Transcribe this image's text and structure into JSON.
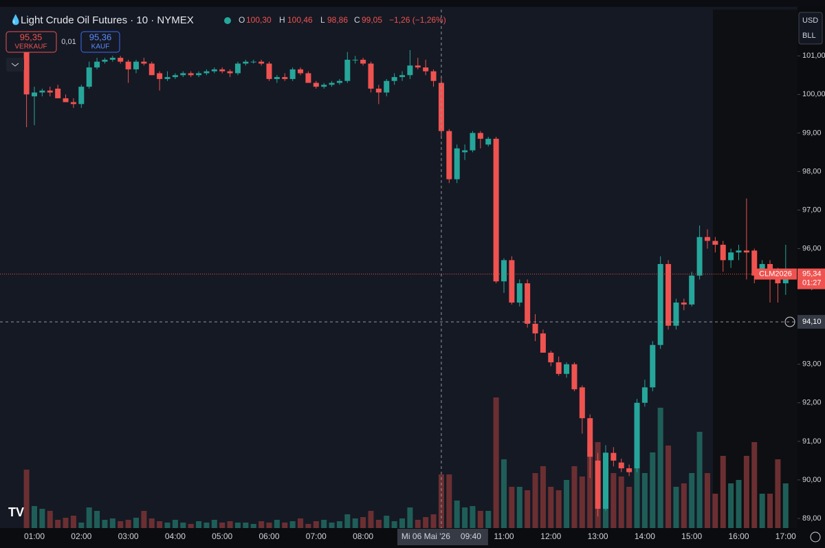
{
  "header": {
    "title": "Light Crude Oil Futures · 10 · NYMEX",
    "open_label": "O",
    "open": "100,30",
    "high_label": "H",
    "high": "100,46",
    "low_label": "L",
    "low": "98,86",
    "close_label": "C",
    "close": "99,05",
    "change": "−1,26 (−1,26%)"
  },
  "trade": {
    "sell_price": "95,35",
    "sell_label": "VERKAUF",
    "spread": "0,01",
    "buy_price": "95,36",
    "buy_label": "KAUF"
  },
  "price_scale": {
    "currency": "USD",
    "unit": "BLL"
  },
  "chart_data": {
    "type": "candlestick",
    "x": [
      "00:50",
      "01:00",
      "01:10",
      "01:20",
      "01:30",
      "01:40",
      "01:50",
      "02:00",
      "02:10",
      "02:20",
      "02:30",
      "02:40",
      "02:50",
      "03:00",
      "03:10",
      "03:20",
      "03:30",
      "03:40",
      "03:50",
      "04:00",
      "04:10",
      "04:20",
      "04:30",
      "04:40",
      "04:50",
      "05:00",
      "05:10",
      "05:20",
      "05:30",
      "05:40",
      "05:50",
      "06:00",
      "06:10",
      "06:20",
      "06:30",
      "06:40",
      "06:50",
      "07:00",
      "07:10",
      "07:20",
      "07:30",
      "07:40",
      "07:50",
      "08:00",
      "08:10",
      "08:20",
      "08:30",
      "08:40",
      "08:50",
      "09:00",
      "09:10",
      "09:20",
      "09:30",
      "09:40",
      "09:50",
      "10:00",
      "10:10",
      "10:20",
      "10:30",
      "10:40",
      "10:50",
      "11:00",
      "11:10",
      "11:20",
      "11:30",
      "11:40",
      "11:50",
      "12:00",
      "12:10",
      "12:20",
      "12:30",
      "12:40",
      "12:50",
      "13:00",
      "13:10",
      "13:20",
      "13:30",
      "13:40",
      "13:50",
      "14:00",
      "14:10",
      "14:20",
      "14:30",
      "14:40",
      "14:50",
      "15:00",
      "15:10",
      "15:20",
      "15:30",
      "15:40",
      "15:50",
      "16:00",
      "16:10",
      "16:20",
      "16:30",
      "16:40",
      "16:50",
      "17:00"
    ],
    "open": [
      101.15,
      99.95,
      100.05,
      100.1,
      100.15,
      99.9,
      99.8,
      99.75,
      100.2,
      100.7,
      100.85,
      100.9,
      100.95,
      100.85,
      100.65,
      100.85,
      100.8,
      100.55,
      100.4,
      100.45,
      100.5,
      100.55,
      100.5,
      100.55,
      100.6,
      100.65,
      100.6,
      100.55,
      100.8,
      100.85,
      100.85,
      100.8,
      100.4,
      100.45,
      100.4,
      100.65,
      100.55,
      100.3,
      100.2,
      100.25,
      100.3,
      100.35,
      100.9,
      100.9,
      100.8,
      100.15,
      100.05,
      100.35,
      100.45,
      100.5,
      100.75,
      100.7,
      100.6,
      100.3,
      99.05,
      97.8,
      98.5,
      98.55,
      99.0,
      98.7,
      98.85,
      95.15,
      95.7,
      94.6,
      95.1,
      94.05,
      93.8,
      93.3,
      93.05,
      92.75,
      93.0,
      92.4,
      91.6,
      90.5,
      89.25,
      90.7,
      90.45,
      90.3,
      90.3,
      92.0,
      92.4,
      93.5,
      95.6,
      94.0,
      94.6,
      94.55,
      95.3,
      96.3,
      96.2,
      96.1,
      95.7,
      95.9,
      95.95,
      95.95,
      95.3,
      95.6,
      95.45,
      95.1
    ],
    "high": [
      101.2,
      100.2,
      100.15,
      100.2,
      100.25,
      100.0,
      99.9,
      100.25,
      100.85,
      100.95,
      100.95,
      101.0,
      101.0,
      100.9,
      100.9,
      100.95,
      100.85,
      100.6,
      100.6,
      100.55,
      100.6,
      100.6,
      100.6,
      100.65,
      100.7,
      100.7,
      100.65,
      100.85,
      100.9,
      100.9,
      100.9,
      100.85,
      100.5,
      100.55,
      100.7,
      100.7,
      100.6,
      100.35,
      100.3,
      100.35,
      100.4,
      101.1,
      101.0,
      100.95,
      100.85,
      100.25,
      100.4,
      100.55,
      100.6,
      101.15,
      100.95,
      100.9,
      100.65,
      100.46,
      99.1,
      98.7,
      98.7,
      99.05,
      99.05,
      98.9,
      98.9,
      95.75,
      95.8,
      95.2,
      95.2,
      94.3,
      93.9,
      93.35,
      93.2,
      93.05,
      93.05,
      92.45,
      91.7,
      90.7,
      90.9,
      90.85,
      90.55,
      90.4,
      92.1,
      92.6,
      93.6,
      95.8,
      95.7,
      94.7,
      94.7,
      95.4,
      96.6,
      96.5,
      96.3,
      96.2,
      96.0,
      96.1,
      97.3,
      96.0,
      95.7,
      95.7,
      95.5,
      96.1
    ],
    "low": [
      99.15,
      99.2,
      99.95,
      99.95,
      99.9,
      99.8,
      99.65,
      99.65,
      100.15,
      100.65,
      100.8,
      100.85,
      100.8,
      100.3,
      100.55,
      100.75,
      100.5,
      100.1,
      100.35,
      100.4,
      100.45,
      100.45,
      100.45,
      100.5,
      100.55,
      100.55,
      100.45,
      100.5,
      100.75,
      100.8,
      100.75,
      100.35,
      100.3,
      100.35,
      100.35,
      100.5,
      100.3,
      100.15,
      100.15,
      100.2,
      100.25,
      100.3,
      100.8,
      100.75,
      100.05,
      99.75,
      99.95,
      100.25,
      100.35,
      100.4,
      100.65,
      100.5,
      100.2,
      98.86,
      97.7,
      97.7,
      98.3,
      98.5,
      98.6,
      98.65,
      95.1,
      94.85,
      94.55,
      94.5,
      93.95,
      93.6,
      93.3,
      92.95,
      92.7,
      92.65,
      92.3,
      91.2,
      90.05,
      89.05,
      89.2,
      90.35,
      90.2,
      90.1,
      90.2,
      91.9,
      92.3,
      93.4,
      93.9,
      93.9,
      94.4,
      94.5,
      95.2,
      96.0,
      95.9,
      95.4,
      95.5,
      95.7,
      95.2,
      95.1,
      95.2,
      94.6,
      94.6,
      94.8
    ],
    "close": [
      100.0,
      100.05,
      100.1,
      100.05,
      99.9,
      99.8,
      99.75,
      100.2,
      100.7,
      100.85,
      100.9,
      100.95,
      100.85,
      100.65,
      100.85,
      100.8,
      100.5,
      100.4,
      100.45,
      100.5,
      100.55,
      100.5,
      100.55,
      100.6,
      100.65,
      100.6,
      100.55,
      100.8,
      100.85,
      100.85,
      100.8,
      100.4,
      100.45,
      100.4,
      100.65,
      100.55,
      100.3,
      100.2,
      100.25,
      100.3,
      100.35,
      100.9,
      100.9,
      100.8,
      100.15,
      100.05,
      100.35,
      100.45,
      100.5,
      100.75,
      100.7,
      100.6,
      100.35,
      99.05,
      97.8,
      98.6,
      98.55,
      99.0,
      98.85,
      98.85,
      95.15,
      95.7,
      94.6,
      95.1,
      94.05,
      93.8,
      93.3,
      93.05,
      92.75,
      93.0,
      92.35,
      91.6,
      90.6,
      89.25,
      90.7,
      90.5,
      90.3,
      90.2,
      92.0,
      92.4,
      93.5,
      95.6,
      94.0,
      94.6,
      94.55,
      95.3,
      96.3,
      96.2,
      96.1,
      95.7,
      95.9,
      95.95,
      95.9,
      95.3,
      95.6,
      95.45,
      95.1,
      95.34
    ],
    "volume": [
      85,
      32,
      28,
      25,
      12,
      15,
      18,
      8,
      30,
      25,
      12,
      14,
      10,
      12,
      15,
      25,
      14,
      10,
      8,
      12,
      8,
      6,
      10,
      8,
      12,
      8,
      10,
      8,
      8,
      6,
      10,
      8,
      12,
      8,
      10,
      14,
      6,
      10,
      12,
      8,
      10,
      20,
      14,
      16,
      25,
      12,
      18,
      10,
      14,
      30,
      12,
      16,
      20,
      78,
      78,
      40,
      30,
      32,
      25,
      25,
      190,
      100,
      60,
      60,
      55,
      80,
      90,
      60,
      55,
      70,
      90,
      75,
      120,
      125,
      110,
      80,
      75,
      60,
      110,
      80,
      110,
      175,
      120,
      60,
      65,
      80,
      140,
      80,
      50,
      105,
      65,
      70,
      105,
      125,
      50,
      50,
      100,
      65
    ],
    "up_color": "#26a69a",
    "down_color": "#ef5350",
    "volume_up_color": "#1f5e58",
    "volume_down_color": "#6b2f32",
    "ylim": [
      88.75,
      102.2
    ],
    "yticks": [
      {
        "value": 89,
        "label": "89,00"
      },
      {
        "value": 90,
        "label": "90,00"
      },
      {
        "value": 91,
        "label": "91,00"
      },
      {
        "value": 92,
        "label": "92,00"
      },
      {
        "value": 93,
        "label": "93,00"
      },
      {
        "value": 94,
        "label": "94,00"
      },
      {
        "value": 95,
        "label": "95,00"
      },
      {
        "value": 96,
        "label": "96,00"
      },
      {
        "value": 97,
        "label": "97,00"
      },
      {
        "value": 98,
        "label": "98,00"
      },
      {
        "value": 99,
        "label": "99,00"
      },
      {
        "value": 100,
        "label": "100,00"
      },
      {
        "value": 101,
        "label": "101,00"
      }
    ],
    "xticks": [
      "01:00",
      "02:00",
      "03:00",
      "04:00",
      "05:00",
      "06:00",
      "07:00",
      "08:00",
      "11:00",
      "12:00",
      "13:00",
      "14:00",
      "15:00",
      "16:00",
      "17:00"
    ],
    "last_price": {
      "value": 95.34,
      "label": "95,34"
    },
    "symbol": "CLM2026",
    "countdown": "01:27",
    "crosshair_price": {
      "value": 94.1,
      "label": "94,10"
    },
    "crosshair_time": "09:40",
    "crosshair_date": "Mi 06 Mai '26"
  }
}
